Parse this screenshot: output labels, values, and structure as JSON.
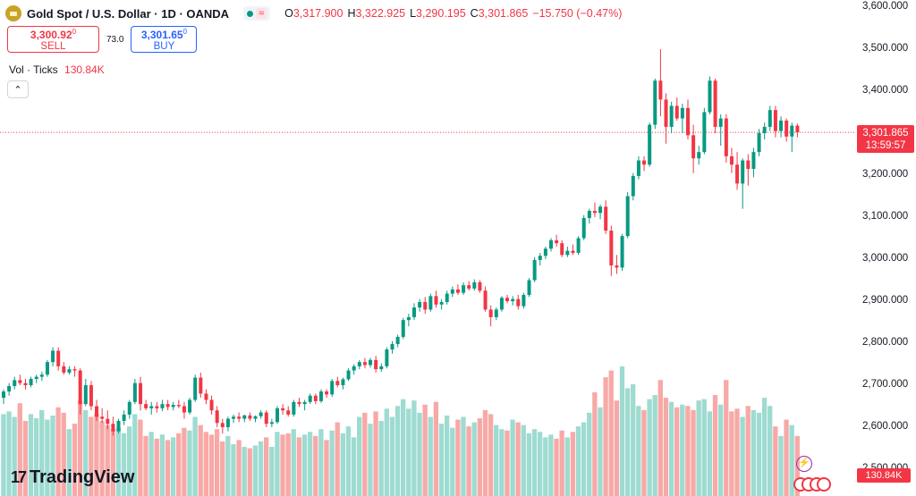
{
  "header": {
    "symbol_title": "Gold Spot / U.S. Dollar · 1D · OANDA",
    "ohlc": [
      {
        "key": "O",
        "value": "3,317.900"
      },
      {
        "key": "H",
        "value": "3,322.925"
      },
      {
        "key": "L",
        "value": "3,290.195"
      },
      {
        "key": "C",
        "value": "3,301.865"
      },
      {
        "key": "",
        "value": "−15.750 (−0.47%)"
      }
    ],
    "status_icon": "wave-icon"
  },
  "trade": {
    "sell_price": "3,300.92",
    "sell_price_sup": "0",
    "sell_label": "SELL",
    "spread": "73.0",
    "buy_price": "3,301.65",
    "buy_price_sup": "0",
    "buy_label": "BUY"
  },
  "volume_legend": {
    "label": "Vol · Ticks",
    "value": "130.84K"
  },
  "price_axis": {
    "ticks": [
      "3,600.000",
      "3,500.000",
      "3,400.000",
      "3,300.000",
      "3,200.000",
      "3,100.000",
      "3,000.000",
      "2,900.000",
      "2,800.000",
      "2,700.000",
      "2,600.000",
      "2,500.000"
    ],
    "current_price": "3,301.865",
    "countdown": "13:59:57",
    "volume_value": "130.84K"
  },
  "branding": {
    "logo_mark": "17",
    "name": "TradingView"
  },
  "colors": {
    "up": "#089981",
    "down": "#f23645",
    "vol_up": "#9edbd0",
    "vol_down": "#f7a9a7"
  },
  "chart_data": {
    "type": "candlestick",
    "title": "Gold Spot / U.S. Dollar · 1D · OANDA",
    "y_unit": "USD",
    "ylim": [
      2480,
      3620
    ],
    "grid": false,
    "last_price": 3301.865,
    "candles": [
      {
        "o": 2670,
        "h": 2690,
        "l": 2655,
        "c": 2685,
        "v": 60
      },
      {
        "o": 2685,
        "h": 2705,
        "l": 2675,
        "c": 2698,
        "v": 62
      },
      {
        "o": 2698,
        "h": 2720,
        "l": 2690,
        "c": 2712,
        "v": 58
      },
      {
        "o": 2712,
        "h": 2725,
        "l": 2700,
        "c": 2705,
        "v": 68
      },
      {
        "o": 2705,
        "h": 2715,
        "l": 2690,
        "c": 2700,
        "v": 55
      },
      {
        "o": 2700,
        "h": 2720,
        "l": 2695,
        "c": 2715,
        "v": 60
      },
      {
        "o": 2715,
        "h": 2725,
        "l": 2705,
        "c": 2720,
        "v": 57
      },
      {
        "o": 2720,
        "h": 2732,
        "l": 2710,
        "c": 2725,
        "v": 63
      },
      {
        "o": 2725,
        "h": 2760,
        "l": 2720,
        "c": 2755,
        "v": 56
      },
      {
        "o": 2755,
        "h": 2790,
        "l": 2745,
        "c": 2782,
        "v": 59
      },
      {
        "o": 2782,
        "h": 2790,
        "l": 2735,
        "c": 2745,
        "v": 65
      },
      {
        "o": 2745,
        "h": 2755,
        "l": 2725,
        "c": 2730,
        "v": 61
      },
      {
        "o": 2730,
        "h": 2745,
        "l": 2725,
        "c": 2738,
        "v": 49
      },
      {
        "o": 2738,
        "h": 2745,
        "l": 2720,
        "c": 2735,
        "v": 53
      },
      {
        "o": 2735,
        "h": 2740,
        "l": 2630,
        "c": 2655,
        "v": 70
      },
      {
        "o": 2655,
        "h": 2715,
        "l": 2650,
        "c": 2700,
        "v": 63
      },
      {
        "o": 2700,
        "h": 2710,
        "l": 2640,
        "c": 2650,
        "v": 58
      },
      {
        "o": 2650,
        "h": 2665,
        "l": 2615,
        "c": 2625,
        "v": 60
      },
      {
        "o": 2625,
        "h": 2645,
        "l": 2610,
        "c": 2620,
        "v": 55
      },
      {
        "o": 2620,
        "h": 2640,
        "l": 2595,
        "c": 2608,
        "v": 52
      },
      {
        "o": 2608,
        "h": 2625,
        "l": 2580,
        "c": 2590,
        "v": 49
      },
      {
        "o": 2590,
        "h": 2620,
        "l": 2585,
        "c": 2615,
        "v": 50
      },
      {
        "o": 2615,
        "h": 2640,
        "l": 2605,
        "c": 2630,
        "v": 46
      },
      {
        "o": 2630,
        "h": 2665,
        "l": 2620,
        "c": 2660,
        "v": 51
      },
      {
        "o": 2660,
        "h": 2715,
        "l": 2655,
        "c": 2705,
        "v": 60
      },
      {
        "o": 2705,
        "h": 2720,
        "l": 2640,
        "c": 2655,
        "v": 56
      },
      {
        "o": 2655,
        "h": 2665,
        "l": 2640,
        "c": 2645,
        "v": 44
      },
      {
        "o": 2645,
        "h": 2660,
        "l": 2630,
        "c": 2650,
        "v": 47
      },
      {
        "o": 2650,
        "h": 2660,
        "l": 2635,
        "c": 2645,
        "v": 42
      },
      {
        "o": 2645,
        "h": 2665,
        "l": 2638,
        "c": 2655,
        "v": 45
      },
      {
        "o": 2655,
        "h": 2665,
        "l": 2640,
        "c": 2648,
        "v": 41
      },
      {
        "o": 2648,
        "h": 2660,
        "l": 2640,
        "c": 2653,
        "v": 43
      },
      {
        "o": 2653,
        "h": 2665,
        "l": 2645,
        "c": 2650,
        "v": 46
      },
      {
        "o": 2650,
        "h": 2660,
        "l": 2620,
        "c": 2635,
        "v": 50
      },
      {
        "o": 2635,
        "h": 2670,
        "l": 2630,
        "c": 2665,
        "v": 48
      },
      {
        "o": 2665,
        "h": 2725,
        "l": 2660,
        "c": 2718,
        "v": 58
      },
      {
        "o": 2718,
        "h": 2730,
        "l": 2670,
        "c": 2680,
        "v": 52
      },
      {
        "o": 2680,
        "h": 2690,
        "l": 2655,
        "c": 2665,
        "v": 47
      },
      {
        "o": 2665,
        "h": 2675,
        "l": 2630,
        "c": 2640,
        "v": 45
      },
      {
        "o": 2640,
        "h": 2650,
        "l": 2600,
        "c": 2610,
        "v": 49
      },
      {
        "o": 2610,
        "h": 2620,
        "l": 2585,
        "c": 2600,
        "v": 40
      },
      {
        "o": 2600,
        "h": 2625,
        "l": 2590,
        "c": 2620,
        "v": 44
      },
      {
        "o": 2620,
        "h": 2630,
        "l": 2610,
        "c": 2625,
        "v": 38
      },
      {
        "o": 2625,
        "h": 2635,
        "l": 2612,
        "c": 2620,
        "v": 41
      },
      {
        "o": 2620,
        "h": 2630,
        "l": 2612,
        "c": 2628,
        "v": 36
      },
      {
        "o": 2628,
        "h": 2635,
        "l": 2615,
        "c": 2620,
        "v": 35
      },
      {
        "o": 2620,
        "h": 2628,
        "l": 2612,
        "c": 2626,
        "v": 37
      },
      {
        "o": 2626,
        "h": 2640,
        "l": 2620,
        "c": 2635,
        "v": 40
      },
      {
        "o": 2635,
        "h": 2640,
        "l": 2600,
        "c": 2608,
        "v": 43
      },
      {
        "o": 2608,
        "h": 2620,
        "l": 2600,
        "c": 2612,
        "v": 36
      },
      {
        "o": 2612,
        "h": 2650,
        "l": 2608,
        "c": 2645,
        "v": 47
      },
      {
        "o": 2645,
        "h": 2655,
        "l": 2630,
        "c": 2640,
        "v": 45
      },
      {
        "o": 2640,
        "h": 2650,
        "l": 2625,
        "c": 2630,
        "v": 46
      },
      {
        "o": 2630,
        "h": 2665,
        "l": 2625,
        "c": 2660,
        "v": 49
      },
      {
        "o": 2660,
        "h": 2670,
        "l": 2648,
        "c": 2655,
        "v": 43
      },
      {
        "o": 2655,
        "h": 2665,
        "l": 2640,
        "c": 2660,
        "v": 45
      },
      {
        "o": 2660,
        "h": 2680,
        "l": 2655,
        "c": 2675,
        "v": 47
      },
      {
        "o": 2675,
        "h": 2680,
        "l": 2655,
        "c": 2662,
        "v": 44
      },
      {
        "o": 2662,
        "h": 2690,
        "l": 2658,
        "c": 2685,
        "v": 49
      },
      {
        "o": 2685,
        "h": 2690,
        "l": 2670,
        "c": 2678,
        "v": 41
      },
      {
        "o": 2678,
        "h": 2715,
        "l": 2672,
        "c": 2710,
        "v": 48
      },
      {
        "o": 2710,
        "h": 2720,
        "l": 2695,
        "c": 2700,
        "v": 54
      },
      {
        "o": 2700,
        "h": 2718,
        "l": 2690,
        "c": 2714,
        "v": 46
      },
      {
        "o": 2714,
        "h": 2740,
        "l": 2710,
        "c": 2735,
        "v": 51
      },
      {
        "o": 2735,
        "h": 2750,
        "l": 2725,
        "c": 2745,
        "v": 43
      },
      {
        "o": 2745,
        "h": 2760,
        "l": 2738,
        "c": 2755,
        "v": 58
      },
      {
        "o": 2755,
        "h": 2765,
        "l": 2740,
        "c": 2748,
        "v": 61
      },
      {
        "o": 2748,
        "h": 2765,
        "l": 2742,
        "c": 2760,
        "v": 53
      },
      {
        "o": 2760,
        "h": 2770,
        "l": 2730,
        "c": 2738,
        "v": 62
      },
      {
        "o": 2738,
        "h": 2752,
        "l": 2732,
        "c": 2745,
        "v": 55
      },
      {
        "o": 2745,
        "h": 2790,
        "l": 2740,
        "c": 2785,
        "v": 64
      },
      {
        "o": 2785,
        "h": 2805,
        "l": 2775,
        "c": 2798,
        "v": 58
      },
      {
        "o": 2798,
        "h": 2820,
        "l": 2790,
        "c": 2815,
        "v": 66
      },
      {
        "o": 2815,
        "h": 2860,
        "l": 2810,
        "c": 2855,
        "v": 71
      },
      {
        "o": 2855,
        "h": 2870,
        "l": 2840,
        "c": 2862,
        "v": 64
      },
      {
        "o": 2862,
        "h": 2895,
        "l": 2855,
        "c": 2885,
        "v": 70
      },
      {
        "o": 2885,
        "h": 2905,
        "l": 2875,
        "c": 2898,
        "v": 61
      },
      {
        "o": 2898,
        "h": 2910,
        "l": 2870,
        "c": 2880,
        "v": 67
      },
      {
        "o": 2880,
        "h": 2918,
        "l": 2875,
        "c": 2912,
        "v": 58
      },
      {
        "o": 2912,
        "h": 2925,
        "l": 2885,
        "c": 2892,
        "v": 69
      },
      {
        "o": 2892,
        "h": 2905,
        "l": 2880,
        "c": 2898,
        "v": 53
      },
      {
        "o": 2898,
        "h": 2925,
        "l": 2892,
        "c": 2918,
        "v": 59
      },
      {
        "o": 2918,
        "h": 2935,
        "l": 2910,
        "c": 2928,
        "v": 50
      },
      {
        "o": 2928,
        "h": 2940,
        "l": 2915,
        "c": 2920,
        "v": 56
      },
      {
        "o": 2920,
        "h": 2945,
        "l": 2915,
        "c": 2938,
        "v": 58
      },
      {
        "o": 2938,
        "h": 2948,
        "l": 2925,
        "c": 2930,
        "v": 51
      },
      {
        "o": 2930,
        "h": 2952,
        "l": 2925,
        "c": 2945,
        "v": 54
      },
      {
        "o": 2945,
        "h": 2950,
        "l": 2920,
        "c": 2925,
        "v": 57
      },
      {
        "o": 2925,
        "h": 2935,
        "l": 2875,
        "c": 2880,
        "v": 63
      },
      {
        "o": 2880,
        "h": 2890,
        "l": 2840,
        "c": 2862,
        "v": 60
      },
      {
        "o": 2862,
        "h": 2885,
        "l": 2855,
        "c": 2880,
        "v": 52
      },
      {
        "o": 2880,
        "h": 2912,
        "l": 2875,
        "c": 2908,
        "v": 49
      },
      {
        "o": 2908,
        "h": 2915,
        "l": 2895,
        "c": 2900,
        "v": 48
      },
      {
        "o": 2900,
        "h": 2912,
        "l": 2890,
        "c": 2905,
        "v": 56
      },
      {
        "o": 2905,
        "h": 2915,
        "l": 2880,
        "c": 2888,
        "v": 54
      },
      {
        "o": 2888,
        "h": 2920,
        "l": 2882,
        "c": 2915,
        "v": 52
      },
      {
        "o": 2915,
        "h": 2955,
        "l": 2910,
        "c": 2950,
        "v": 46
      },
      {
        "o": 2950,
        "h": 3005,
        "l": 2945,
        "c": 2998,
        "v": 49
      },
      {
        "o": 2998,
        "h": 3015,
        "l": 2985,
        "c": 3008,
        "v": 47
      },
      {
        "o": 3008,
        "h": 3030,
        "l": 3000,
        "c": 3025,
        "v": 43
      },
      {
        "o": 3025,
        "h": 3050,
        "l": 3018,
        "c": 3045,
        "v": 45
      },
      {
        "o": 3045,
        "h": 3058,
        "l": 3030,
        "c": 3038,
        "v": 42
      },
      {
        "o": 3038,
        "h": 3045,
        "l": 3005,
        "c": 3010,
        "v": 48
      },
      {
        "o": 3010,
        "h": 3030,
        "l": 3005,
        "c": 3020,
        "v": 43
      },
      {
        "o": 3020,
        "h": 3035,
        "l": 3010,
        "c": 3015,
        "v": 47
      },
      {
        "o": 3015,
        "h": 3055,
        "l": 3010,
        "c": 3050,
        "v": 51
      },
      {
        "o": 3050,
        "h": 3105,
        "l": 3045,
        "c": 3098,
        "v": 54
      },
      {
        "o": 3098,
        "h": 3120,
        "l": 3085,
        "c": 3115,
        "v": 61
      },
      {
        "o": 3115,
        "h": 3135,
        "l": 3100,
        "c": 3110,
        "v": 76
      },
      {
        "o": 3110,
        "h": 3130,
        "l": 3095,
        "c": 3125,
        "v": 65
      },
      {
        "o": 3125,
        "h": 3140,
        "l": 3060,
        "c": 3068,
        "v": 87
      },
      {
        "o": 3068,
        "h": 3080,
        "l": 2960,
        "c": 2985,
        "v": 92
      },
      {
        "o": 2985,
        "h": 3010,
        "l": 2965,
        "c": 2980,
        "v": 70
      },
      {
        "o": 2980,
        "h": 3060,
        "l": 2972,
        "c": 3055,
        "v": 95
      },
      {
        "o": 3055,
        "h": 3160,
        "l": 3050,
        "c": 3150,
        "v": 79
      },
      {
        "o": 3150,
        "h": 3205,
        "l": 3140,
        "c": 3198,
        "v": 82
      },
      {
        "o": 3198,
        "h": 3245,
        "l": 3190,
        "c": 3235,
        "v": 66
      },
      {
        "o": 3235,
        "h": 3245,
        "l": 3210,
        "c": 3225,
        "v": 63
      },
      {
        "o": 3225,
        "h": 3325,
        "l": 3220,
        "c": 3320,
        "v": 71
      },
      {
        "o": 3320,
        "h": 3430,
        "l": 3310,
        "c": 3425,
        "v": 74
      },
      {
        "o": 3425,
        "h": 3500,
        "l": 3340,
        "c": 3380,
        "v": 85
      },
      {
        "o": 3380,
        "h": 3395,
        "l": 3275,
        "c": 3315,
        "v": 72
      },
      {
        "o": 3315,
        "h": 3375,
        "l": 3300,
        "c": 3365,
        "v": 69
      },
      {
        "o": 3365,
        "h": 3385,
        "l": 3330,
        "c": 3335,
        "v": 65
      },
      {
        "o": 3335,
        "h": 3370,
        "l": 3300,
        "c": 3360,
        "v": 67
      },
      {
        "o": 3360,
        "h": 3380,
        "l": 3285,
        "c": 3295,
        "v": 66
      },
      {
        "o": 3295,
        "h": 3320,
        "l": 3205,
        "c": 3240,
        "v": 63
      },
      {
        "o": 3240,
        "h": 3270,
        "l": 3225,
        "c": 3255,
        "v": 70
      },
      {
        "o": 3255,
        "h": 3360,
        "l": 3250,
        "c": 3350,
        "v": 71
      },
      {
        "o": 3350,
        "h": 3435,
        "l": 3345,
        "c": 3425,
        "v": 62
      },
      {
        "o": 3425,
        "h": 3430,
        "l": 3300,
        "c": 3315,
        "v": 74
      },
      {
        "o": 3315,
        "h": 3345,
        "l": 3270,
        "c": 3335,
        "v": 67
      },
      {
        "o": 3335,
        "h": 3345,
        "l": 3230,
        "c": 3245,
        "v": 85
      },
      {
        "o": 3245,
        "h": 3265,
        "l": 3205,
        "c": 3225,
        "v": 62
      },
      {
        "o": 3225,
        "h": 3255,
        "l": 3165,
        "c": 3180,
        "v": 64
      },
      {
        "o": 3180,
        "h": 3240,
        "l": 3120,
        "c": 3235,
        "v": 58
      },
      {
        "o": 3235,
        "h": 3250,
        "l": 3175,
        "c": 3215,
        "v": 66
      },
      {
        "o": 3215,
        "h": 3265,
        "l": 3195,
        "c": 3255,
        "v": 63
      },
      {
        "o": 3255,
        "h": 3310,
        "l": 3245,
        "c": 3300,
        "v": 61
      },
      {
        "o": 3300,
        "h": 3325,
        "l": 3285,
        "c": 3315,
        "v": 72
      },
      {
        "o": 3315,
        "h": 3365,
        "l": 3305,
        "c": 3355,
        "v": 66
      },
      {
        "o": 3355,
        "h": 3365,
        "l": 3290,
        "c": 3305,
        "v": 51
      },
      {
        "o": 3305,
        "h": 3340,
        "l": 3290,
        "c": 3330,
        "v": 44
      },
      {
        "o": 3330,
        "h": 3335,
        "l": 3280,
        "c": 3292,
        "v": 56
      },
      {
        "o": 3292,
        "h": 3325,
        "l": 3255,
        "c": 3317.9,
        "v": 52
      },
      {
        "o": 3317.9,
        "h": 3322.925,
        "l": 3290.195,
        "c": 3301.865,
        "v": 44
      }
    ]
  }
}
